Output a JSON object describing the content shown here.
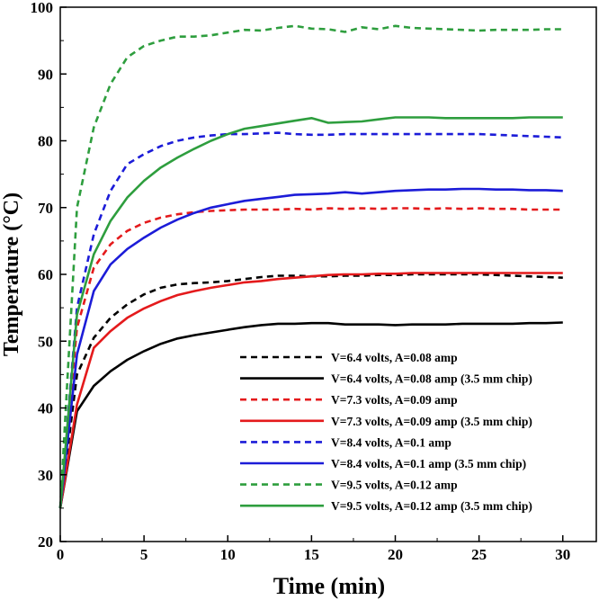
{
  "chart_data": {
    "type": "line",
    "title": "",
    "xlabel": "Time (min)",
    "ylabel": "Temperature (°C)",
    "xlim": [
      0,
      32
    ],
    "ylim": [
      20,
      100
    ],
    "xticks": [
      0,
      5,
      10,
      15,
      20,
      25,
      30
    ],
    "yticks": [
      20,
      30,
      40,
      50,
      60,
      70,
      80,
      90,
      100
    ],
    "grid": false,
    "legend_position": "lower-right",
    "series": [
      {
        "name": "V=6.4 volts, A=0.08 amp",
        "color": "#000000",
        "style": "dashed",
        "x": [
          0,
          1,
          2,
          3,
          4,
          5,
          6,
          7,
          8,
          9,
          10,
          11,
          12,
          13,
          14,
          15,
          16,
          17,
          18,
          19,
          20,
          21,
          22,
          23,
          24,
          25,
          26,
          27,
          28,
          29,
          30
        ],
        "y": [
          25,
          45,
          50.5,
          53.5,
          55.5,
          57,
          58,
          58.5,
          58.7,
          58.8,
          59,
          59.3,
          59.6,
          59.8,
          59.8,
          59.7,
          59.7,
          59.8,
          59.8,
          59.9,
          59.9,
          60,
          60,
          60,
          60,
          60,
          59.9,
          59.8,
          59.7,
          59.6,
          59.5
        ]
      },
      {
        "name": "V=6.4 volts, A=0.08 amp (3.5 mm chip)",
        "color": "#000000",
        "style": "solid",
        "x": [
          0,
          1,
          2,
          3,
          4,
          5,
          6,
          7,
          8,
          9,
          10,
          11,
          12,
          13,
          14,
          15,
          16,
          17,
          18,
          19,
          20,
          21,
          22,
          23,
          24,
          25,
          26,
          27,
          28,
          29,
          30
        ],
        "y": [
          25,
          39.5,
          43.3,
          45.5,
          47.2,
          48.5,
          49.6,
          50.4,
          50.9,
          51.3,
          51.7,
          52.1,
          52.4,
          52.6,
          52.6,
          52.7,
          52.7,
          52.5,
          52.5,
          52.5,
          52.4,
          52.5,
          52.5,
          52.5,
          52.6,
          52.6,
          52.6,
          52.6,
          52.7,
          52.7,
          52.8
        ]
      },
      {
        "name": "V=7.3 volts, A=0.09 amp",
        "color": "#e41a1c",
        "style": "dashed",
        "x": [
          0,
          1,
          2,
          3,
          4,
          5,
          6,
          7,
          8,
          9,
          10,
          11,
          12,
          13,
          14,
          15,
          16,
          17,
          18,
          19,
          20,
          21,
          22,
          23,
          24,
          25,
          26,
          27,
          28,
          29,
          30
        ],
        "y": [
          25,
          52,
          61,
          64.5,
          66.5,
          67.7,
          68.5,
          69,
          69.3,
          69.5,
          69.6,
          69.7,
          69.7,
          69.7,
          69.8,
          69.7,
          69.9,
          69.8,
          69.9,
          69.8,
          69.9,
          69.9,
          69.8,
          69.9,
          69.8,
          69.9,
          69.8,
          69.8,
          69.7,
          69.7,
          69.7
        ]
      },
      {
        "name": "V=7.3 volts, A=0.09 amp (3.5 mm chip)",
        "color": "#e41a1c",
        "style": "solid",
        "x": [
          0,
          1,
          2,
          3,
          4,
          5,
          6,
          7,
          8,
          9,
          10,
          11,
          12,
          13,
          14,
          15,
          16,
          17,
          18,
          19,
          20,
          21,
          22,
          23,
          24,
          25,
          26,
          27,
          28,
          29,
          30
        ],
        "y": [
          25,
          40.5,
          49,
          51.5,
          53.5,
          54.9,
          56,
          56.9,
          57.5,
          58,
          58.4,
          58.8,
          59,
          59.3,
          59.5,
          59.7,
          59.9,
          60,
          60,
          60.1,
          60.1,
          60.2,
          60.2,
          60.2,
          60.2,
          60.2,
          60.2,
          60.2,
          60.2,
          60.2,
          60.2
        ]
      },
      {
        "name": "V=8.4 volts, A=0.1 amp",
        "color": "#1c1cd8",
        "style": "dashed",
        "x": [
          0,
          1,
          2,
          3,
          4,
          5,
          6,
          7,
          8,
          9,
          10,
          11,
          12,
          13,
          14,
          15,
          16,
          17,
          18,
          19,
          20,
          21,
          22,
          23,
          24,
          25,
          26,
          27,
          28,
          29,
          30
        ],
        "y": [
          25,
          55,
          66,
          72.5,
          76.5,
          78,
          79.2,
          80,
          80.5,
          80.8,
          81,
          81,
          81.1,
          81.2,
          81,
          80.9,
          80.9,
          81,
          81,
          81,
          81,
          81,
          81,
          81,
          81,
          81,
          80.9,
          80.8,
          80.7,
          80.6,
          80.5
        ]
      },
      {
        "name": "V=8.4 volts, A=0.1 amp (3.5 mm chip)",
        "color": "#1c1cd8",
        "style": "solid",
        "x": [
          0,
          1,
          2,
          3,
          4,
          5,
          6,
          7,
          8,
          9,
          10,
          11,
          12,
          13,
          14,
          15,
          16,
          17,
          18,
          19,
          20,
          21,
          22,
          23,
          24,
          25,
          26,
          27,
          28,
          29,
          30
        ],
        "y": [
          25,
          48,
          57.5,
          61.5,
          63.8,
          65.5,
          67,
          68.2,
          69.2,
          70,
          70.5,
          71,
          71.3,
          71.6,
          71.9,
          72,
          72.1,
          72.3,
          72.1,
          72.3,
          72.5,
          72.6,
          72.7,
          72.7,
          72.8,
          72.8,
          72.7,
          72.7,
          72.6,
          72.6,
          72.5
        ]
      },
      {
        "name": "V=9.5 volts, A=0.12 amp",
        "color": "#2e9e3e",
        "style": "dashed",
        "x": [
          0,
          1,
          2,
          3,
          4,
          5,
          6,
          7,
          8,
          9,
          10,
          11,
          12,
          13,
          14,
          15,
          16,
          17,
          18,
          19,
          20,
          21,
          22,
          23,
          24,
          25,
          26,
          27,
          28,
          29,
          30
        ],
        "y": [
          25,
          70,
          82,
          88.5,
          92.5,
          94.2,
          95,
          95.6,
          95.6,
          95.8,
          96.2,
          96.6,
          96.5,
          96.9,
          97.2,
          96.8,
          96.7,
          96.3,
          97,
          96.7,
          97.2,
          96.9,
          96.8,
          96.7,
          96.6,
          96.5,
          96.6,
          96.6,
          96.6,
          96.7,
          96.7
        ]
      },
      {
        "name": "V=9.5 volts, A=0.12 amp (3.5 mm chip)",
        "color": "#2e9e3e",
        "style": "solid",
        "x": [
          0,
          1,
          2,
          3,
          4,
          5,
          6,
          7,
          8,
          9,
          10,
          11,
          12,
          13,
          14,
          15,
          16,
          17,
          18,
          19,
          20,
          21,
          22,
          23,
          24,
          25,
          26,
          27,
          28,
          29,
          30
        ],
        "y": [
          25,
          54,
          63,
          68,
          71.5,
          74,
          76,
          77.5,
          78.8,
          80,
          81,
          81.8,
          82.2,
          82.6,
          83,
          83.4,
          82.7,
          82.8,
          82.9,
          83.2,
          83.5,
          83.5,
          83.5,
          83.4,
          83.4,
          83.4,
          83.4,
          83.4,
          83.5,
          83.5,
          83.5
        ]
      }
    ]
  }
}
